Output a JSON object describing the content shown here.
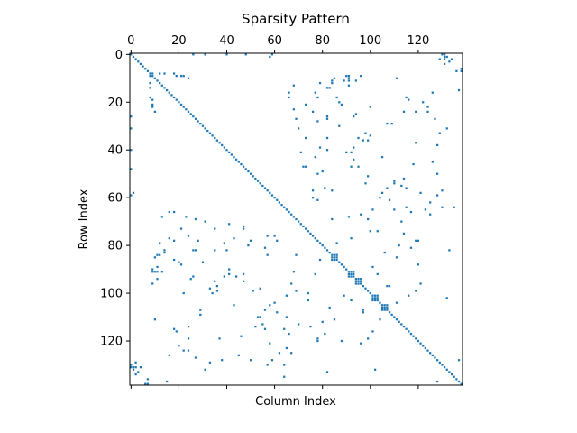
{
  "chart_data": {
    "type": "scatter",
    "subtype": "sparsity-pattern",
    "title": "Sparsity Pattern",
    "xlabel": "Column Index",
    "ylabel": "Row Index",
    "xlim": [
      -0.5,
      138.5
    ],
    "ylim": [
      138.5,
      -0.5
    ],
    "x_axis_position": "top",
    "x_ticks": [
      0,
      20,
      40,
      60,
      80,
      100,
      120
    ],
    "y_ticks": [
      0,
      20,
      40,
      60,
      80,
      100,
      120
    ],
    "grid": false,
    "legend": "none",
    "marker_color": "#1f77b4",
    "matrix_size": [
      139,
      139
    ],
    "diagonal": {
      "from": 0,
      "to": 138
    },
    "dense_blocks": [
      {
        "rows": [
          84,
          86
        ],
        "cols": [
          84,
          86
        ]
      },
      {
        "rows": [
          91,
          93
        ],
        "cols": [
          91,
          93
        ]
      },
      {
        "rows": [
          94,
          96
        ],
        "cols": [
          94,
          96
        ]
      },
      {
        "rows": [
          101,
          103
        ],
        "cols": [
          101,
          103
        ]
      },
      {
        "rows": [
          105,
          107
        ],
        "cols": [
          105,
          107
        ]
      }
    ],
    "offdiagonal_nonzeros": [
      [
        0,
        40
      ],
      [
        0,
        59
      ],
      [
        0,
        131
      ],
      [
        1,
        131
      ],
      [
        1,
        132
      ],
      [
        2,
        129
      ],
      [
        2,
        131
      ],
      [
        3,
        133
      ],
      [
        6,
        138
      ],
      [
        7,
        138
      ],
      [
        8,
        9
      ],
      [
        8,
        12
      ],
      [
        8,
        14
      ],
      [
        8,
        18
      ],
      [
        9,
        19
      ],
      [
        9,
        21
      ],
      [
        9,
        22
      ],
      [
        10,
        24
      ],
      [
        10,
        85
      ],
      [
        10,
        91
      ],
      [
        11,
        84
      ],
      [
        11,
        89
      ],
      [
        11,
        91
      ],
      [
        11,
        94
      ],
      [
        12,
        79
      ],
      [
        12,
        84
      ],
      [
        13,
        91
      ],
      [
        14,
        82
      ],
      [
        16,
        66
      ],
      [
        16,
        77
      ],
      [
        18,
        66
      ],
      [
        18,
        78
      ],
      [
        18,
        115
      ],
      [
        19,
        116
      ],
      [
        20,
        87
      ],
      [
        21,
        73
      ],
      [
        21,
        88
      ],
      [
        22,
        100
      ],
      [
        22,
        124
      ],
      [
        23,
        68
      ],
      [
        24,
        76
      ],
      [
        24,
        119
      ],
      [
        26,
        0
      ],
      [
        26,
        82
      ],
      [
        26,
        93
      ],
      [
        27,
        69
      ],
      [
        27,
        82
      ],
      [
        28,
        78
      ],
      [
        29,
        107
      ],
      [
        31,
        0
      ],
      [
        33,
        98
      ],
      [
        34,
        100
      ],
      [
        35,
        95
      ],
      [
        36,
        97
      ],
      [
        37,
        119
      ],
      [
        39,
        79
      ],
      [
        40,
        0
      ],
      [
        40,
        82
      ],
      [
        41,
        90
      ],
      [
        43,
        105
      ],
      [
        44,
        93
      ],
      [
        45,
        126
      ],
      [
        47,
        73
      ],
      [
        47,
        92
      ],
      [
        48,
        0
      ],
      [
        49,
        80
      ],
      [
        50,
        78
      ],
      [
        50,
        128
      ],
      [
        51,
        99
      ],
      [
        52,
        114
      ],
      [
        54,
        110
      ],
      [
        55,
        113
      ],
      [
        56,
        107
      ],
      [
        56,
        115
      ],
      [
        57,
        76
      ],
      [
        57,
        84
      ],
      [
        58,
        1
      ],
      [
        58,
        121
      ],
      [
        59,
        128
      ],
      [
        60,
        104
      ],
      [
        61,
        78
      ],
      [
        62,
        125
      ],
      [
        64,
        130
      ],
      [
        65,
        110
      ],
      [
        66,
        117
      ],
      [
        67,
        96
      ],
      [
        68,
        13
      ],
      [
        68,
        91
      ],
      [
        69,
        99
      ],
      [
        70,
        31
      ],
      [
        71,
        41
      ],
      [
        72,
        47
      ],
      [
        73,
        35
      ],
      [
        74,
        103
      ],
      [
        75,
        114
      ],
      [
        76,
        60
      ],
      [
        77,
        43
      ],
      [
        78,
        119
      ],
      [
        79,
        86
      ],
      [
        80,
        112
      ],
      [
        81,
        56
      ],
      [
        82,
        35
      ],
      [
        83,
        14
      ],
      [
        84,
        69
      ],
      [
        85,
        111
      ],
      [
        86,
        18
      ],
      [
        87,
        30
      ],
      [
        88,
        120
      ],
      [
        89,
        101
      ],
      [
        90,
        9
      ],
      [
        91,
        9
      ],
      [
        92,
        41
      ],
      [
        92,
        77
      ],
      [
        93,
        39
      ],
      [
        94,
        25
      ],
      [
        95,
        47
      ],
      [
        96,
        9
      ],
      [
        97,
        108
      ],
      [
        98,
        54
      ],
      [
        99,
        36
      ],
      [
        100,
        74
      ],
      [
        101,
        65
      ],
      [
        102,
        132
      ],
      [
        103,
        92
      ],
      [
        104,
        111
      ],
      [
        105,
        58
      ],
      [
        106,
        83
      ],
      [
        107,
        97
      ],
      [
        108,
        61
      ],
      [
        109,
        29
      ],
      [
        110,
        53
      ],
      [
        111,
        10
      ],
      [
        112,
        112
      ],
      [
        113,
        70
      ],
      [
        114,
        24
      ],
      [
        115,
        64
      ],
      [
        116,
        101
      ],
      [
        117,
        81
      ],
      [
        118,
        46
      ],
      [
        119,
        99
      ],
      [
        120,
        78
      ],
      [
        121,
        96
      ],
      [
        122,
        20
      ],
      [
        123,
        65
      ],
      [
        124,
        24
      ],
      [
        125,
        67
      ],
      [
        126,
        16
      ],
      [
        127,
        27
      ],
      [
        128,
        38
      ],
      [
        129,
        33
      ],
      [
        130,
        0
      ],
      [
        130,
        57
      ],
      [
        131,
        4
      ],
      [
        132,
        31
      ],
      [
        133,
        82
      ],
      [
        134,
        2
      ],
      [
        135,
        64
      ],
      [
        136,
        7
      ],
      [
        137,
        15
      ],
      [
        137,
        128
      ]
    ]
  }
}
